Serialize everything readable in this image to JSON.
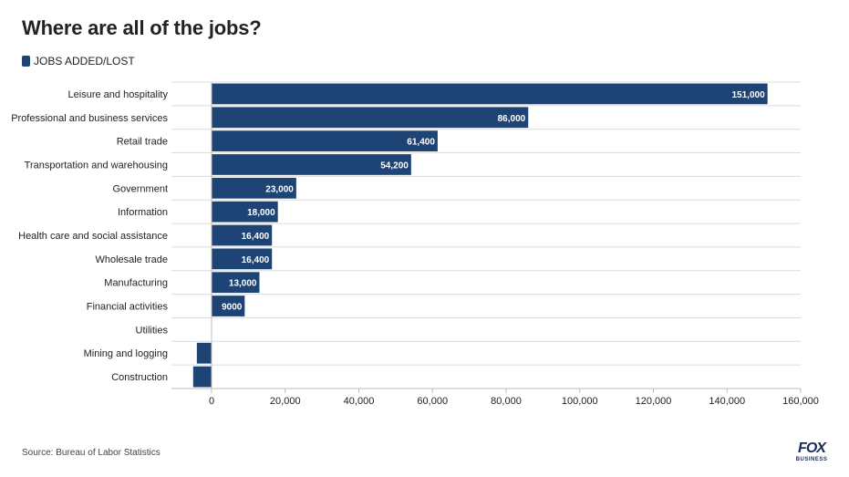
{
  "title": "Where are all of the jobs?",
  "legend_label": "JOBS ADDED/LOST",
  "source": "Source: Bureau of Labor Statistics",
  "logo": {
    "main": "FOX",
    "sub": "BUSINESS"
  },
  "colors": {
    "bar": "#1e4476",
    "grid": "#dcdcdc",
    "axis": "#bdbdbd",
    "text": "#222222"
  },
  "chart_data": {
    "type": "bar",
    "orientation": "horizontal",
    "categories": [
      "Leisure and hospitality",
      "Professional and business services",
      "Retail trade",
      "Transportation and warehousing",
      "Government",
      "Information",
      "Health care and social assistance",
      "Wholesale trade",
      "Manufacturing",
      "Financial activities",
      "Utilities",
      "Mining and logging",
      "Construction"
    ],
    "values": [
      151000,
      86000,
      61400,
      54200,
      23000,
      18000,
      16400,
      16400,
      13000,
      9000,
      0,
      -4000,
      -5000
    ],
    "value_labels": [
      "151,000",
      "86,000",
      "61,400",
      "54,200",
      "23,000",
      "18,000",
      "16,400",
      "16,400",
      "13,000",
      "9000",
      "",
      "",
      ""
    ],
    "x_ticks": [
      0,
      20000,
      40000,
      60000,
      80000,
      100000,
      120000,
      140000,
      160000
    ],
    "x_tick_labels": [
      "0",
      "20,000",
      "40,000",
      "60,000",
      "80,000",
      "100,000",
      "120,000",
      "140,000",
      "160,000"
    ],
    "xlim": [
      -11000,
      160000
    ],
    "grid": true,
    "legend": "top-left",
    "series": [
      {
        "name": "JOBS ADDED/LOST"
      }
    ]
  }
}
